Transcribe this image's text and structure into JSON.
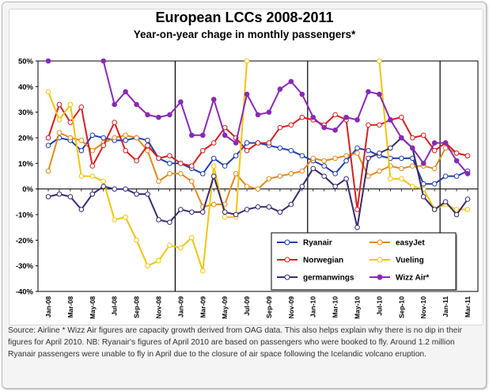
{
  "chart_data": {
    "type": "line",
    "title": "European LCCs 2008-2011",
    "subtitle": "Year-on-year chage in monthly passengers*",
    "y_ticks": [
      "50%",
      "40%",
      "30%",
      "20%",
      "10%",
      "0%",
      "-10%",
      "-20%",
      "-30%",
      "-40%"
    ],
    "ylim": [
      -40,
      50
    ],
    "x_tick_labels": [
      "Jan-08",
      "Mar-08",
      "May-08",
      "Jul-08",
      "Sep-08",
      "Nov-08",
      "Jan-09",
      "Mar-09",
      "May-09",
      "Jul-09",
      "Sep-09",
      "Nov-09",
      "Jan-10",
      "Mar-10",
      "May-10",
      "Jul-10",
      "Sep-10",
      "Nov-10",
      "Jan-11",
      "Mar-11"
    ],
    "months": [
      "Jan-08",
      "Feb-08",
      "Mar-08",
      "Apr-08",
      "May-08",
      "Jun-08",
      "Jul-08",
      "Aug-08",
      "Sep-08",
      "Oct-08",
      "Nov-08",
      "Dec-08",
      "Jan-09",
      "Feb-09",
      "Mar-09",
      "Apr-09",
      "May-09",
      "Jun-09",
      "Jul-09",
      "Aug-09",
      "Sep-09",
      "Oct-09",
      "Nov-09",
      "Dec-09",
      "Jan-10",
      "Feb-10",
      "Mar-10",
      "Apr-10",
      "May-10",
      "Jun-10",
      "Jul-10",
      "Aug-10",
      "Sep-10",
      "Oct-10",
      "Nov-10",
      "Dec-10",
      "Jan-11",
      "Feb-11",
      "Mar-11"
    ],
    "series": [
      {
        "name": "Ryanair",
        "color": "#1f3fb0",
        "values": [
          17,
          20,
          19,
          15,
          21,
          20,
          19,
          19,
          20,
          19,
          12,
          10,
          10,
          8,
          6,
          12,
          9,
          13,
          18,
          18,
          17,
          16,
          15,
          13,
          11,
          9,
          6,
          11,
          16,
          15,
          13,
          12,
          12,
          12,
          2,
          2,
          5,
          5,
          7
        ]
      },
      {
        "name": "easyJet",
        "color": "#e08a1e",
        "values": [
          7,
          22,
          20,
          19,
          15,
          18,
          20,
          21,
          20,
          15,
          3,
          6,
          6,
          3,
          -7,
          -6,
          -6,
          6,
          1,
          0,
          4,
          5,
          6,
          7,
          12,
          11,
          12,
          13,
          14,
          5,
          7,
          9,
          8,
          9,
          9,
          8,
          16,
          14,
          13
        ]
      },
      {
        "name": "Norwegian",
        "color": "#d42020",
        "values": [
          20,
          33,
          26,
          32,
          9,
          17,
          26,
          15,
          11,
          17,
          12,
          13,
          10,
          9,
          15,
          18,
          24,
          20,
          15,
          18,
          18,
          24,
          25,
          28,
          27,
          25,
          29,
          27,
          -8,
          25,
          25,
          27,
          28,
          20,
          21,
          15,
          18,
          14,
          13
        ]
      },
      {
        "name": "Vueling",
        "color": "#f2c40e",
        "values": [
          38,
          27,
          33,
          5,
          5,
          3,
          -12,
          -11,
          -20,
          -30,
          -28,
          -22,
          -23,
          -19,
          -32,
          9,
          -11,
          -11,
          50,
          null,
          null,
          null,
          null,
          null,
          null,
          null,
          null,
          null,
          null,
          null,
          50,
          4,
          4,
          1,
          0,
          -8,
          -6,
          -8,
          -8
        ]
      },
      {
        "name": "germanwings",
        "color": "#3a2a6e",
        "values": [
          -3,
          -2,
          -3,
          -8,
          -2,
          1,
          0,
          0,
          -2,
          -2,
          -12,
          -13,
          -8,
          -9,
          -9,
          5,
          -9,
          -10,
          -8,
          -7,
          -7,
          -9,
          -6,
          1,
          8,
          5,
          1,
          4,
          -15,
          12,
          14,
          16,
          20,
          16,
          -3,
          -8,
          -5,
          -10,
          -4
        ]
      },
      {
        "name": "Wizz Air*",
        "color": "#8a2ab5",
        "values": [
          50,
          null,
          null,
          null,
          null,
          50,
          33,
          38,
          33,
          29,
          28,
          29,
          34,
          21,
          21,
          35,
          21,
          18,
          37,
          29,
          30,
          39,
          42,
          37,
          28,
          24,
          23,
          28,
          27,
          38,
          37,
          27,
          20,
          16,
          10,
          18,
          18,
          11,
          6
        ]
      }
    ],
    "vueling_faded_values": [
      null,
      null,
      null,
      null,
      null,
      null,
      null,
      null,
      null,
      null,
      null,
      null,
      null,
      null,
      null,
      null,
      null,
      null,
      null,
      null,
      null,
      null,
      null,
      null,
      null,
      null,
      null,
      null,
      null,
      null,
      null,
      null,
      null,
      null,
      null,
      null,
      null,
      null,
      null
    ],
    "year_dividers_after": [
      "Dec-08",
      "Dec-09",
      "Dec-10"
    ],
    "legend_placement": "bottom-right",
    "grid": false
  },
  "footnote": "Source: Airline * Wizz Air figures are capacity growth derived from OAG data. This also helps explain why there is no dip in their figures for April 2010. NB: Ryanair's figures of April 2010 are based on passengers who were booked to fly. Around 1.2 million Ryanair passengers were unable to fly in April due to the closure of air space following the Icelandic volcano eruption."
}
